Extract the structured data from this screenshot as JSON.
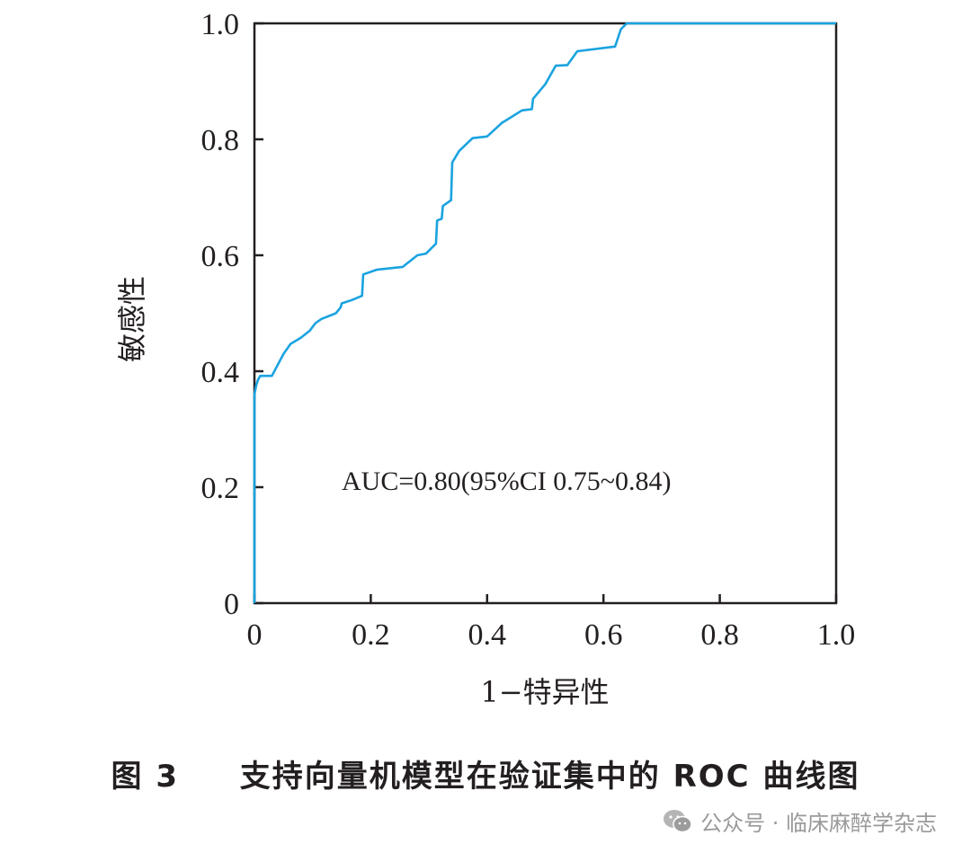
{
  "chart_data": {
    "type": "line",
    "xlabel": "1−特异性",
    "ylabel": "敏感性",
    "xlim": [
      0,
      1.0
    ],
    "ylim": [
      0,
      1.0
    ],
    "x_ticks": [
      "0",
      "0.2",
      "0.4",
      "0.6",
      "0.8",
      "1.0"
    ],
    "y_ticks": [
      "0",
      "0.2",
      "0.4",
      "0.6",
      "0.8",
      "1.0"
    ],
    "grid": false,
    "annotation": "AUC=0.80(95%CI 0.75~0.84)",
    "line_color": "#1aa3e0",
    "series": [
      {
        "x": [
          0,
          0,
          0.003,
          0.006,
          0.01,
          0.03,
          0.05,
          0.062,
          0.08,
          0.095,
          0.105,
          0.115,
          0.14,
          0.148,
          0.15,
          0.168,
          0.185,
          0.187,
          0.21,
          0.255,
          0.28,
          0.295,
          0.312,
          0.314,
          0.322,
          0.324,
          0.338,
          0.34,
          0.352,
          0.375,
          0.4,
          0.425,
          0.46,
          0.477,
          0.479,
          0.5,
          0.518,
          0.538,
          0.555,
          0.62,
          0.63,
          0.64,
          1.0
        ],
        "y": [
          0,
          0.36,
          0.375,
          0.385,
          0.392,
          0.392,
          0.43,
          0.447,
          0.458,
          0.47,
          0.483,
          0.49,
          0.5,
          0.51,
          0.517,
          0.523,
          0.53,
          0.567,
          0.575,
          0.58,
          0.6,
          0.603,
          0.62,
          0.66,
          0.663,
          0.685,
          0.695,
          0.76,
          0.78,
          0.802,
          0.805,
          0.828,
          0.85,
          0.852,
          0.87,
          0.895,
          0.927,
          0.928,
          0.952,
          0.96,
          0.99,
          1.0,
          1.0
        ]
      }
    ]
  },
  "caption": {
    "figure_number": "图 3",
    "text": "支持向量机模型在验证集中的 ROC 曲线图"
  },
  "watermark": {
    "text": "公众号 · 临床麻醉学杂志",
    "icon": "wechat-icon"
  }
}
